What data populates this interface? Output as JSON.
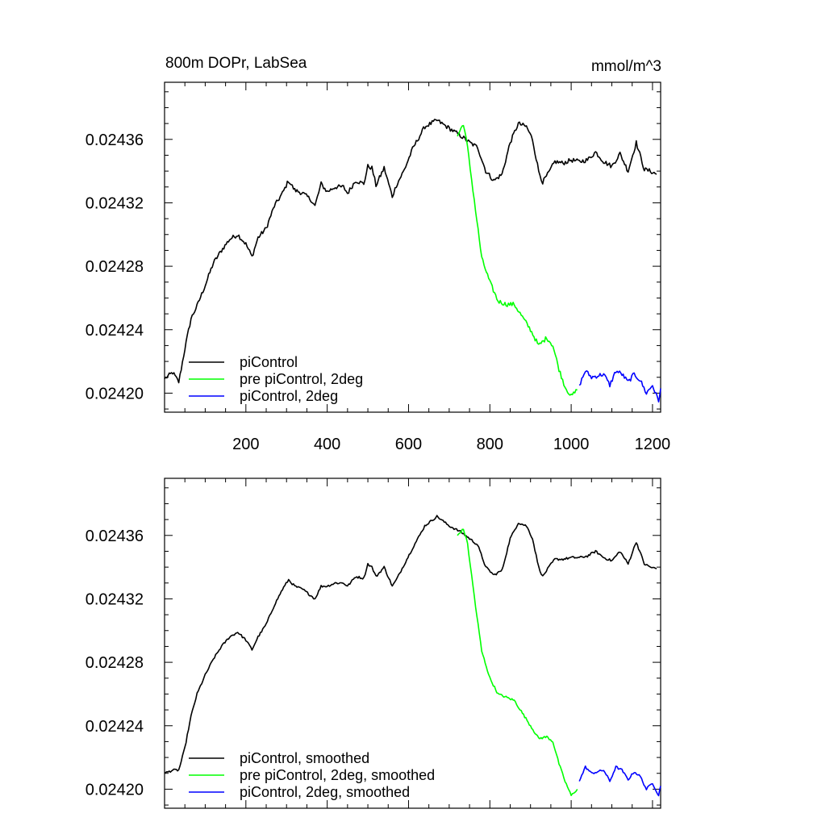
{
  "chart_data": [
    {
      "type": "line",
      "title": "800m DOPr, LabSea",
      "units": "mmol/m^3",
      "xlim": [
        0,
        1220
      ],
      "ylim": [
        0.024188,
        0.024396
      ],
      "xticks": [
        200,
        400,
        600,
        800,
        1000,
        1200
      ],
      "xtick_labels": [
        "200",
        "400",
        "600",
        "800",
        "1000",
        "1200"
      ],
      "yticks": [
        0.0242,
        0.02424,
        0.02428,
        0.02432,
        0.02436
      ],
      "ytick_labels": [
        "0.02420",
        "0.02424",
        "0.02428",
        "0.02432",
        "0.02436"
      ],
      "legend_position": "bottom-left",
      "noise": 1.4e-06,
      "series": [
        {
          "name": "piControl",
          "color": "#000000",
          "x": [
            0,
            20,
            35,
            50,
            65,
            80,
            100,
            120,
            140,
            160,
            180,
            200,
            215,
            230,
            250,
            270,
            290,
            305,
            320,
            340,
            360,
            370,
            385,
            400,
            420,
            440,
            450,
            470,
            490,
            500,
            510,
            520,
            540,
            560,
            570,
            590,
            610,
            640,
            670,
            700,
            730,
            750,
            770,
            790,
            810,
            830,
            850,
            870,
            890,
            905,
            920,
            930,
            945,
            960,
            980,
            1000,
            1020,
            1040,
            1060,
            1080,
            1100,
            1120,
            1140,
            1160,
            1180,
            1195,
            1210
          ],
          "y": [
            0.024209,
            0.024213,
            0.024207,
            0.024228,
            0.024247,
            0.024255,
            0.024268,
            0.024282,
            0.02429,
            0.024297,
            0.0243,
            0.024294,
            0.024286,
            0.024298,
            0.024304,
            0.024318,
            0.024326,
            0.024334,
            0.024328,
            0.024326,
            0.024322,
            0.024318,
            0.024332,
            0.024327,
            0.02433,
            0.02433,
            0.024326,
            0.024334,
            0.024332,
            0.024343,
            0.024342,
            0.024331,
            0.024342,
            0.024324,
            0.024331,
            0.024341,
            0.024354,
            0.024368,
            0.024372,
            0.024367,
            0.024362,
            0.024358,
            0.024355,
            0.02434,
            0.024334,
            0.024338,
            0.024358,
            0.02437,
            0.024368,
            0.02436,
            0.02434,
            0.024333,
            0.024339,
            0.024346,
            0.024345,
            0.024347,
            0.024346,
            0.024347,
            0.024352,
            0.024346,
            0.024343,
            0.024351,
            0.02434,
            0.024358,
            0.024341,
            0.02434,
            0.024338
          ]
        },
        {
          "name": "pre piControl, 2deg",
          "color": "#00ff00",
          "x": [
            720,
            735,
            745,
            755,
            765,
            780,
            800,
            820,
            840,
            860,
            880,
            900,
            920,
            940,
            955,
            970,
            985,
            1000,
            1015
          ],
          "y": [
            0.024362,
            0.02437,
            0.024355,
            0.024335,
            0.024315,
            0.024285,
            0.02427,
            0.024258,
            0.024256,
            0.024256,
            0.024248,
            0.02424,
            0.02423,
            0.024235,
            0.02423,
            0.024215,
            0.024204,
            0.024198,
            0.024202
          ]
        },
        {
          "name": "piControl, 2deg",
          "color": "#0000ff",
          "x": [
            1020,
            1035,
            1050,
            1065,
            1080,
            1095,
            1110,
            1125,
            1140,
            1155,
            1170,
            1185,
            1200,
            1215,
            1220
          ],
          "y": [
            0.024205,
            0.024214,
            0.02421,
            0.024211,
            0.024212,
            0.024205,
            0.024214,
            0.024212,
            0.024207,
            0.024212,
            0.024208,
            0.0242,
            0.024205,
            0.024195,
            0.024203
          ]
        }
      ]
    },
    {
      "type": "line",
      "xlim": [
        0,
        1220
      ],
      "ylim": [
        0.024188,
        0.024396
      ],
      "xticks": [
        200,
        400,
        600,
        800,
        1000,
        1200
      ],
      "yticks": [
        0.0242,
        0.02424,
        0.02428,
        0.02432,
        0.02436
      ],
      "ytick_labels": [
        "0.02420",
        "0.02424",
        "0.02428",
        "0.02432",
        "0.02436"
      ],
      "legend_position": "bottom-left",
      "noise": 7e-07,
      "series": [
        {
          "name": "piControl, smoothed",
          "color": "#000000",
          "x": [
            0,
            20,
            35,
            50,
            65,
            80,
            100,
            120,
            140,
            160,
            180,
            200,
            215,
            230,
            250,
            270,
            290,
            305,
            320,
            340,
            360,
            370,
            385,
            400,
            420,
            440,
            450,
            470,
            490,
            500,
            510,
            520,
            540,
            560,
            570,
            590,
            610,
            640,
            670,
            700,
            730,
            750,
            770,
            790,
            810,
            830,
            850,
            870,
            890,
            905,
            920,
            930,
            945,
            960,
            980,
            1000,
            1020,
            1040,
            1060,
            1080,
            1100,
            1120,
            1140,
            1160,
            1180,
            1195,
            1210
          ],
          "y": [
            0.02421,
            0.024212,
            0.024212,
            0.024226,
            0.024246,
            0.02426,
            0.024272,
            0.024282,
            0.02429,
            0.024296,
            0.024299,
            0.024294,
            0.024288,
            0.024296,
            0.024304,
            0.024316,
            0.024326,
            0.024332,
            0.024328,
            0.024326,
            0.024322,
            0.02432,
            0.024328,
            0.024328,
            0.02433,
            0.02433,
            0.024328,
            0.024334,
            0.024333,
            0.024342,
            0.02434,
            0.024334,
            0.02434,
            0.024328,
            0.024332,
            0.024342,
            0.024352,
            0.024366,
            0.024372,
            0.024366,
            0.024362,
            0.024358,
            0.024354,
            0.02434,
            0.024335,
            0.024338,
            0.024358,
            0.024368,
            0.024366,
            0.024358,
            0.02434,
            0.024334,
            0.02434,
            0.024345,
            0.024345,
            0.024346,
            0.024346,
            0.024347,
            0.02435,
            0.024346,
            0.024344,
            0.02435,
            0.024342,
            0.024356,
            0.024342,
            0.02434,
            0.024339
          ]
        },
        {
          "name": "pre piControl, 2deg, smoothed",
          "color": "#00ff00",
          "x": [
            720,
            735,
            745,
            755,
            765,
            780,
            800,
            820,
            840,
            860,
            880,
            900,
            920,
            940,
            955,
            970,
            985,
            1000,
            1015
          ],
          "y": [
            0.02436,
            0.024364,
            0.024355,
            0.024335,
            0.024315,
            0.024287,
            0.02427,
            0.02426,
            0.024258,
            0.024256,
            0.024248,
            0.02424,
            0.024232,
            0.024233,
            0.02423,
            0.024216,
            0.024205,
            0.024196,
            0.0242
          ]
        },
        {
          "name": "piControl, 2deg, smoothed",
          "color": "#0000ff",
          "x": [
            1020,
            1035,
            1050,
            1065,
            1080,
            1095,
            1110,
            1125,
            1140,
            1155,
            1170,
            1185,
            1200,
            1215,
            1220
          ],
          "y": [
            0.024205,
            0.024214,
            0.02421,
            0.024211,
            0.024212,
            0.024205,
            0.024214,
            0.024212,
            0.024206,
            0.024211,
            0.024208,
            0.0242,
            0.024204,
            0.024196,
            0.024202
          ]
        }
      ]
    }
  ]
}
